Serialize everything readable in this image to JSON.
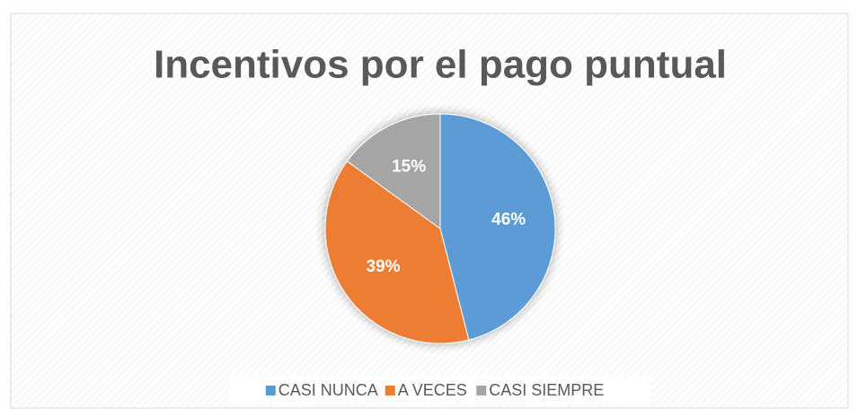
{
  "chart_data": {
    "type": "pie",
    "title": "Incentivos por el pago puntual",
    "categories": [
      "CASI NUNCA",
      "A VECES",
      "CASI SIEMPRE"
    ],
    "values": [
      46,
      39,
      15
    ],
    "value_labels": [
      "46%",
      "39%",
      "15%"
    ],
    "colors": [
      "#5b9bd5",
      "#ed7d31",
      "#a5a5a5"
    ],
    "legend": "bottom"
  }
}
